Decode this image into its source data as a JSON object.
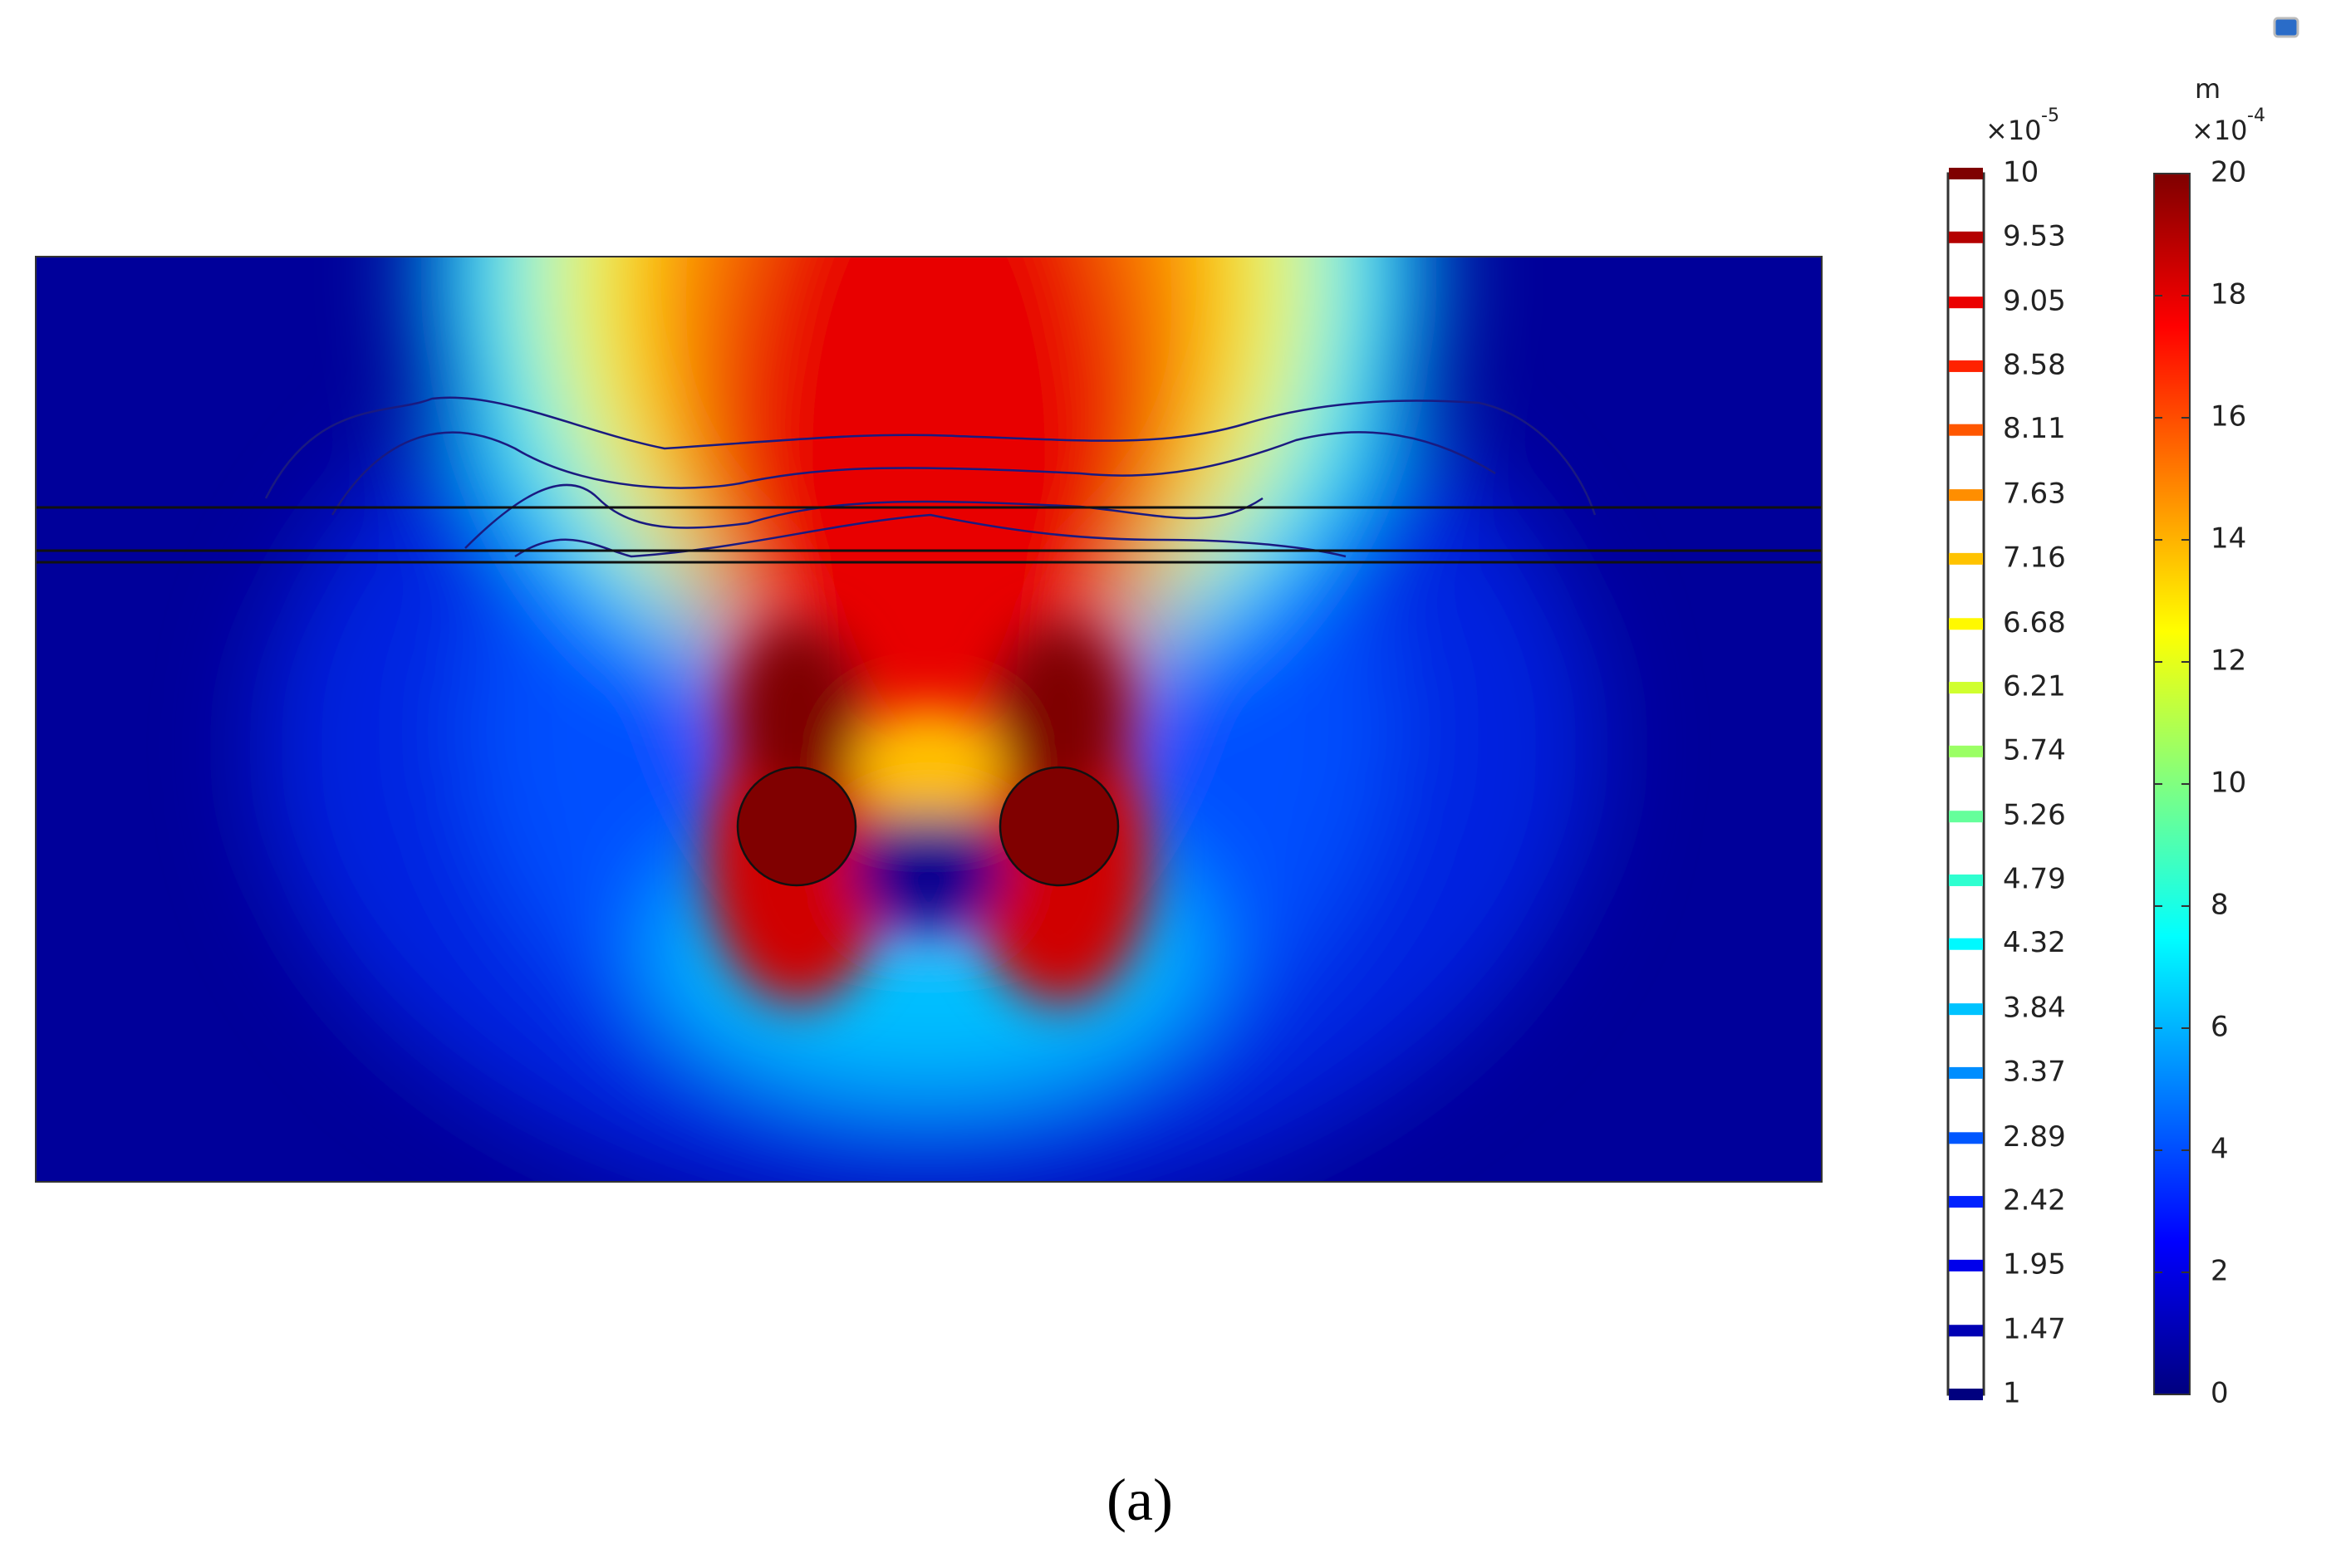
{
  "chart_data": {
    "type": "heatmap",
    "contour_legend": {
      "multiplier": "×10",
      "exponent": "-5",
      "levels": [
        10,
        9.53,
        9.05,
        8.58,
        8.11,
        7.63,
        7.16,
        6.68,
        6.21,
        5.74,
        5.26,
        4.79,
        4.32,
        3.84,
        3.37,
        2.89,
        2.42,
        1.95,
        1.47,
        1
      ]
    },
    "colorbar": {
      "unit": "m",
      "multiplier": "×10",
      "exponent": "-4",
      "ylim": [
        0,
        20
      ],
      "yticks": [
        0,
        2,
        4,
        6,
        8,
        10,
        12,
        14,
        16,
        18,
        20
      ],
      "colormap": [
        "#00007f",
        "#0000ff",
        "#0080ff",
        "#00ffff",
        "#80ff80",
        "#ffff00",
        "#ff8000",
        "#ff0000",
        "#7f0000"
      ]
    },
    "caption": "(a)"
  }
}
